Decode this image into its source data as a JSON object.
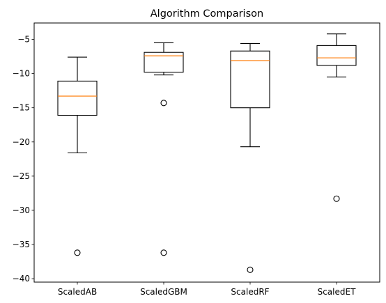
{
  "chart_data": {
    "type": "box",
    "title": "Algorithm Comparison",
    "xlabel": "",
    "ylabel": "",
    "categories": [
      "ScaledAB",
      "ScaledGBM",
      "ScaledRF",
      "ScaledET"
    ],
    "ylim": [
      -40.5,
      -2.6
    ],
    "y_ticks": [
      -40,
      -35,
      -30,
      -25,
      -20,
      -15,
      -10,
      -5
    ],
    "grid": false,
    "legend": "none",
    "median_color": "#ff7f0e",
    "box_color": "#000000",
    "series": [
      {
        "label": "ScaledAB",
        "whisker_low": -21.6,
        "q1": -16.1,
        "median": -13.3,
        "q3": -11.1,
        "whisker_high": -7.6,
        "outliers": [
          -36.2
        ]
      },
      {
        "label": "ScaledGBM",
        "whisker_low": -10.2,
        "q1": -9.8,
        "median": -7.4,
        "q3": -6.9,
        "whisker_high": -5.5,
        "outliers": [
          -14.3,
          -36.2
        ]
      },
      {
        "label": "ScaledRF",
        "whisker_low": -20.7,
        "q1": -15.0,
        "median": -8.1,
        "q3": -6.7,
        "whisker_high": -5.6,
        "outliers": [
          -38.7
        ]
      },
      {
        "label": "ScaledET",
        "whisker_low": -10.5,
        "q1": -8.8,
        "median": -7.7,
        "q3": -5.9,
        "whisker_high": -4.2,
        "outliers": [
          -28.3
        ]
      }
    ]
  }
}
